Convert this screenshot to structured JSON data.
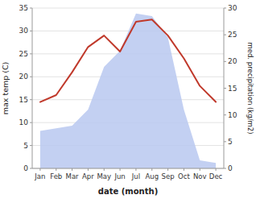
{
  "chart_data": {
    "type": "line",
    "categories": [
      "Jan",
      "Feb",
      "Mar",
      "Apr",
      "May",
      "Jun",
      "Jul",
      "Aug",
      "Sep",
      "Oct",
      "Nov",
      "Dec"
    ],
    "series": [
      {
        "type": "area",
        "axis": "y2",
        "color": "#b8c8f0",
        "values": [
          7.0,
          7.5,
          8.0,
          11.0,
          19.0,
          22.0,
          29.0,
          28.5,
          24.5,
          11.0,
          1.5,
          1.0
        ]
      },
      {
        "type": "line",
        "color": "#c0392b",
        "values": [
          14.5,
          16.0,
          21.0,
          26.5,
          29.0,
          25.5,
          32.0,
          32.5,
          29.0,
          24.0,
          18.0,
          14.5
        ]
      }
    ],
    "xlabel": "date (month)",
    "ylabel": "max temp (C)",
    "y2label": "med. precipitation (kg/m2)",
    "ylim": [
      0,
      35
    ],
    "yticks": [
      0,
      5,
      10,
      15,
      20,
      25,
      30,
      35
    ],
    "y2lim": [
      0,
      30
    ],
    "y2ticks": [
      0,
      5,
      10,
      15,
      20,
      25,
      30
    ],
    "grid": true
  }
}
